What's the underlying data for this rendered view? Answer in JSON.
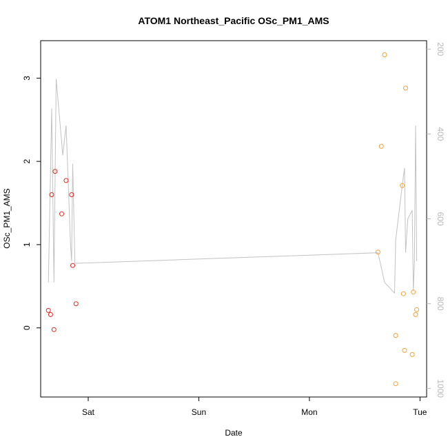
{
  "chart_data": {
    "type": "scatter",
    "title": "ATOM1 Northeast_Pacific OSc_PM1_AMS",
    "xlabel": "Date",
    "ylabel": "OSc_PM1_AMS",
    "x_unit": "days",
    "xlim": [
      -0.43,
      3.06
    ],
    "ylim": [
      -0.83,
      3.45
    ],
    "x_ticks": [
      {
        "label": "Sat",
        "value": 0
      },
      {
        "label": "Sun",
        "value": 1
      },
      {
        "label": "Mon",
        "value": 2
      },
      {
        "label": "Tue",
        "value": 3
      }
    ],
    "y_ticks": [
      0,
      1,
      2,
      3
    ],
    "y2_lim": [
      1020,
      180
    ],
    "y2_ticks": [
      200,
      400,
      600,
      800,
      1000
    ],
    "colors": {
      "series_red": "#e8241c",
      "series_orange": "#f5a033",
      "altitude_line": "#c2c2c2"
    },
    "series": [
      {
        "color": "#e8241c",
        "points": [
          {
            "x": -0.36,
            "y": 0.21
          },
          {
            "x": -0.34,
            "y": 0.16
          },
          {
            "x": -0.33,
            "y": 1.6
          },
          {
            "x": -0.31,
            "y": -0.02
          },
          {
            "x": -0.3,
            "y": 1.88
          },
          {
            "x": -0.24,
            "y": 1.37
          },
          {
            "x": -0.2,
            "y": 1.77
          },
          {
            "x": -0.15,
            "y": 1.6
          },
          {
            "x": -0.14,
            "y": 0.75
          },
          {
            "x": -0.11,
            "y": 0.29
          }
        ]
      },
      {
        "color": "#f5a033",
        "points": [
          {
            "x": 2.62,
            "y": 0.91
          },
          {
            "x": 2.65,
            "y": 2.18
          },
          {
            "x": 2.68,
            "y": 3.28
          },
          {
            "x": 2.78,
            "y": -0.09
          },
          {
            "x": 2.78,
            "y": -0.67
          },
          {
            "x": 2.84,
            "y": 1.71
          },
          {
            "x": 2.85,
            "y": 0.41
          },
          {
            "x": 2.86,
            "y": -0.27
          },
          {
            "x": 2.87,
            "y": 2.88
          },
          {
            "x": 2.93,
            "y": -0.32
          },
          {
            "x": 2.94,
            "y": 0.43
          },
          {
            "x": 2.96,
            "y": 0.16
          },
          {
            "x": 2.97,
            "y": 0.22
          }
        ]
      }
    ],
    "altitude_series": {
      "color": "#c2c2c2",
      "points": [
        {
          "x": -0.36,
          "y": 750
        },
        {
          "x": -0.33,
          "y": 340
        },
        {
          "x": -0.31,
          "y": 750
        },
        {
          "x": -0.29,
          "y": 270
        },
        {
          "x": -0.23,
          "y": 450
        },
        {
          "x": -0.2,
          "y": 380
        },
        {
          "x": -0.16,
          "y": 660
        },
        {
          "x": -0.15,
          "y": 700
        },
        {
          "x": -0.14,
          "y": 470
        },
        {
          "x": -0.12,
          "y": 705
        },
        {
          "x": 2.62,
          "y": 680
        },
        {
          "x": 2.68,
          "y": 750
        },
        {
          "x": 2.77,
          "y": 775
        },
        {
          "x": 2.78,
          "y": 650
        },
        {
          "x": 2.84,
          "y": 520
        },
        {
          "x": 2.86,
          "y": 480
        },
        {
          "x": 2.87,
          "y": 680
        },
        {
          "x": 2.89,
          "y": 600
        },
        {
          "x": 2.93,
          "y": 580
        },
        {
          "x": 2.94,
          "y": 770
        },
        {
          "x": 2.95,
          "y": 700
        },
        {
          "x": 2.96,
          "y": 380
        },
        {
          "x": 2.97,
          "y": 700
        }
      ]
    },
    "grid": false,
    "legend": "none"
  }
}
